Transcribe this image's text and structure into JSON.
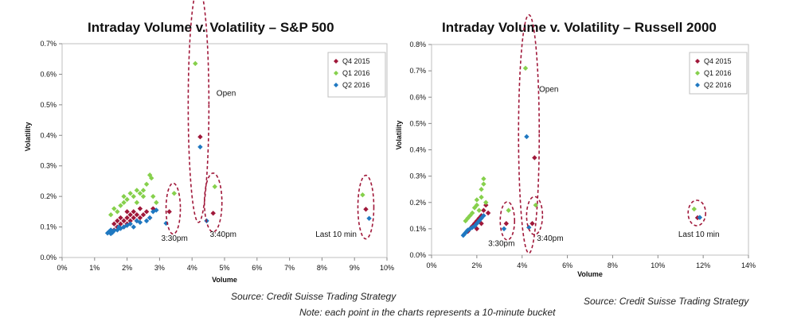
{
  "chart_data": [
    {
      "type": "scatter",
      "title": "Intraday Volume v. Volatility – S&P 500",
      "xlabel": "Volume",
      "ylabel": "Volatility",
      "xlim": [
        0,
        10
      ],
      "ylim": [
        0,
        0.7
      ],
      "x_ticks": [
        "0%",
        "1%",
        "2%",
        "3%",
        "4%",
        "5%",
        "6%",
        "7%",
        "8%",
        "9%",
        "10%"
      ],
      "y_ticks": [
        "0.0%",
        "0.1%",
        "0.2%",
        "0.3%",
        "0.4%",
        "0.5%",
        "0.6%",
        "0.7%"
      ],
      "grid": false,
      "legend_position": "top-right",
      "series": [
        {
          "name": "Q4 2015",
          "color": "#a0183a",
          "points": [
            [
              1.6,
              0.09
            ],
            [
              1.6,
              0.11
            ],
            [
              1.7,
              0.1
            ],
            [
              1.7,
              0.12
            ],
            [
              1.8,
              0.11
            ],
            [
              1.8,
              0.13
            ],
            [
              1.9,
              0.1
            ],
            [
              1.9,
              0.12
            ],
            [
              2.0,
              0.11
            ],
            [
              2.0,
              0.13
            ],
            [
              2.0,
              0.15
            ],
            [
              2.1,
              0.12
            ],
            [
              2.1,
              0.14
            ],
            [
              2.2,
              0.13
            ],
            [
              2.2,
              0.15
            ],
            [
              2.3,
              0.12
            ],
            [
              2.3,
              0.14
            ],
            [
              2.4,
              0.13
            ],
            [
              2.4,
              0.16
            ],
            [
              2.5,
              0.14
            ],
            [
              2.6,
              0.15
            ],
            [
              2.7,
              0.13
            ],
            [
              2.8,
              0.16
            ],
            [
              3.3,
              0.15
            ],
            [
              4.65,
              0.145
            ],
            [
              4.25,
              0.395
            ],
            [
              9.35,
              0.158
            ]
          ]
        },
        {
          "name": "Q1 2016",
          "color": "#86d04c",
          "points": [
            [
              1.5,
              0.14
            ],
            [
              1.6,
              0.16
            ],
            [
              1.7,
              0.15
            ],
            [
              1.8,
              0.17
            ],
            [
              1.9,
              0.18
            ],
            [
              1.9,
              0.2
            ],
            [
              2.0,
              0.19
            ],
            [
              2.1,
              0.21
            ],
            [
              2.2,
              0.2
            ],
            [
              2.3,
              0.22
            ],
            [
              2.3,
              0.18
            ],
            [
              2.4,
              0.21
            ],
            [
              2.5,
              0.2
            ],
            [
              2.5,
              0.22
            ],
            [
              2.6,
              0.24
            ],
            [
              2.7,
              0.27
            ],
            [
              2.75,
              0.26
            ],
            [
              2.8,
              0.2
            ],
            [
              2.9,
              0.18
            ],
            [
              3.45,
              0.21
            ],
            [
              4.1,
              0.635
            ],
            [
              4.7,
              0.232
            ],
            [
              9.25,
              0.205
            ]
          ]
        },
        {
          "name": "Q2 2016",
          "color": "#1f78c1",
          "points": [
            [
              1.4,
              0.08
            ],
            [
              1.45,
              0.085
            ],
            [
              1.5,
              0.078
            ],
            [
              1.5,
              0.09
            ],
            [
              1.55,
              0.082
            ],
            [
              1.6,
              0.088
            ],
            [
              1.7,
              0.09
            ],
            [
              1.75,
              0.1
            ],
            [
              1.8,
              0.095
            ],
            [
              1.9,
              0.1
            ],
            [
              2.0,
              0.105
            ],
            [
              2.1,
              0.11
            ],
            [
              2.2,
              0.1
            ],
            [
              2.3,
              0.12
            ],
            [
              2.4,
              0.115
            ],
            [
              2.6,
              0.12
            ],
            [
              2.7,
              0.13
            ],
            [
              2.8,
              0.15
            ],
            [
              2.9,
              0.155
            ],
            [
              3.2,
              0.112
            ],
            [
              4.25,
              0.362
            ],
            [
              4.45,
              0.12
            ],
            [
              9.45,
              0.128
            ]
          ]
        }
      ],
      "annotations": [
        "Open",
        "3:30pm",
        "3:40pm",
        "Last 10 min"
      ]
    },
    {
      "type": "scatter",
      "title": "Intraday Volume v. Volatility – Russell 2000",
      "xlabel": "Volume",
      "ylabel": "Volatility",
      "xlim": [
        0,
        14
      ],
      "ylim": [
        0,
        0.8
      ],
      "x_ticks": [
        "0%",
        "2%",
        "4%",
        "6%",
        "8%",
        "10%",
        "12%",
        "14%"
      ],
      "y_ticks": [
        "0.0%",
        "0.1%",
        "0.2%",
        "0.3%",
        "0.4%",
        "0.5%",
        "0.6%",
        "0.7%",
        "0.8%"
      ],
      "grid": false,
      "legend_position": "top-right",
      "series": [
        {
          "name": "Q4 2015",
          "color": "#a0183a",
          "points": [
            [
              1.6,
              0.09
            ],
            [
              1.7,
              0.1
            ],
            [
              1.8,
              0.11
            ],
            [
              1.9,
              0.12
            ],
            [
              2.0,
              0.13
            ],
            [
              2.0,
              0.1
            ],
            [
              2.1,
              0.14
            ],
            [
              2.2,
              0.15
            ],
            [
              2.2,
              0.12
            ],
            [
              2.3,
              0.17
            ],
            [
              2.4,
              0.19
            ],
            [
              2.5,
              0.16
            ],
            [
              3.3,
              0.12
            ],
            [
              4.45,
              0.12
            ],
            [
              4.55,
              0.37
            ],
            [
              11.75,
              0.142
            ]
          ]
        },
        {
          "name": "Q1 2016",
          "color": "#86d04c",
          "points": [
            [
              1.5,
              0.13
            ],
            [
              1.6,
              0.14
            ],
            [
              1.7,
              0.15
            ],
            [
              1.8,
              0.16
            ],
            [
              1.9,
              0.18
            ],
            [
              2.0,
              0.19
            ],
            [
              2.0,
              0.21
            ],
            [
              2.1,
              0.17
            ],
            [
              2.2,
              0.22
            ],
            [
              2.2,
              0.25
            ],
            [
              2.3,
              0.27
            ],
            [
              2.3,
              0.29
            ],
            [
              2.4,
              0.2
            ],
            [
              3.4,
              0.17
            ],
            [
              4.6,
              0.19
            ],
            [
              4.15,
              0.71
            ],
            [
              11.6,
              0.175
            ]
          ]
        },
        {
          "name": "Q2 2016",
          "color": "#1f78c1",
          "points": [
            [
              1.4,
              0.075
            ],
            [
              1.45,
              0.08
            ],
            [
              1.5,
              0.085
            ],
            [
              1.55,
              0.09
            ],
            [
              1.6,
              0.095
            ],
            [
              1.7,
              0.1
            ],
            [
              1.8,
              0.105
            ],
            [
              1.9,
              0.11
            ],
            [
              2.0,
              0.12
            ],
            [
              2.1,
              0.13
            ],
            [
              2.2,
              0.14
            ],
            [
              2.3,
              0.15
            ],
            [
              3.2,
              0.1
            ],
            [
              4.3,
              0.105
            ],
            [
              4.2,
              0.45
            ],
            [
              11.85,
              0.143
            ]
          ]
        }
      ],
      "annotations": [
        "Open",
        "3:30pm",
        "3:40pm",
        "Last 10 min"
      ]
    }
  ],
  "footer": {
    "source_left": "Source: Credit Suisse Trading Strategy",
    "source_right": "Source: Credit Suisse Trading Strategy",
    "note": "Note: each point in the charts represents a 10-minute bucket"
  }
}
